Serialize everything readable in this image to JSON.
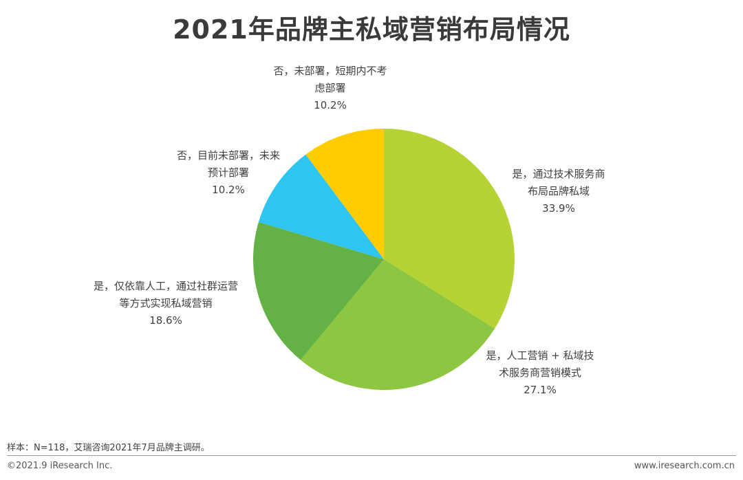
{
  "chart_data": {
    "type": "pie",
    "title": "2021年品牌主私域营销布局情况",
    "categories": [
      "是，通过技术服务商布局品牌私域",
      "是，人工营销 + 私域技术服务商营销模式",
      "是，仅依靠人工，通过社群运营等方式实现私域营销",
      "否，目前未部署，未来预计部署",
      "否，未部署，短期内不考虑部署"
    ],
    "label_lines": [
      [
        "是，通过技术服务商",
        "布局品牌私域"
      ],
      [
        "是，人工营销 + 私域技",
        "术服务商营销模式"
      ],
      [
        "是，仅依靠人工，通过社群运营",
        "等方式实现私域营销"
      ],
      [
        "否，目前未部署，未来",
        "预计部署"
      ],
      [
        "否，未部署，短期内不考",
        "虑部署"
      ]
    ],
    "values": [
      33.9,
      27.1,
      18.6,
      10.2,
      10.2
    ],
    "value_labels": [
      "33.9%",
      "27.1%",
      "18.6%",
      "10.2%",
      "10.2%"
    ],
    "colors": [
      "#b5d334",
      "#8dc641",
      "#64b145",
      "#2ec5f0",
      "#ffcc00"
    ]
  },
  "footer": {
    "source": "样本：N=118，艾瑞咨询2021年7月品牌主调研。",
    "copyright": "©2021.9 iResearch Inc.",
    "website": "www.iresearch.com.cn"
  }
}
